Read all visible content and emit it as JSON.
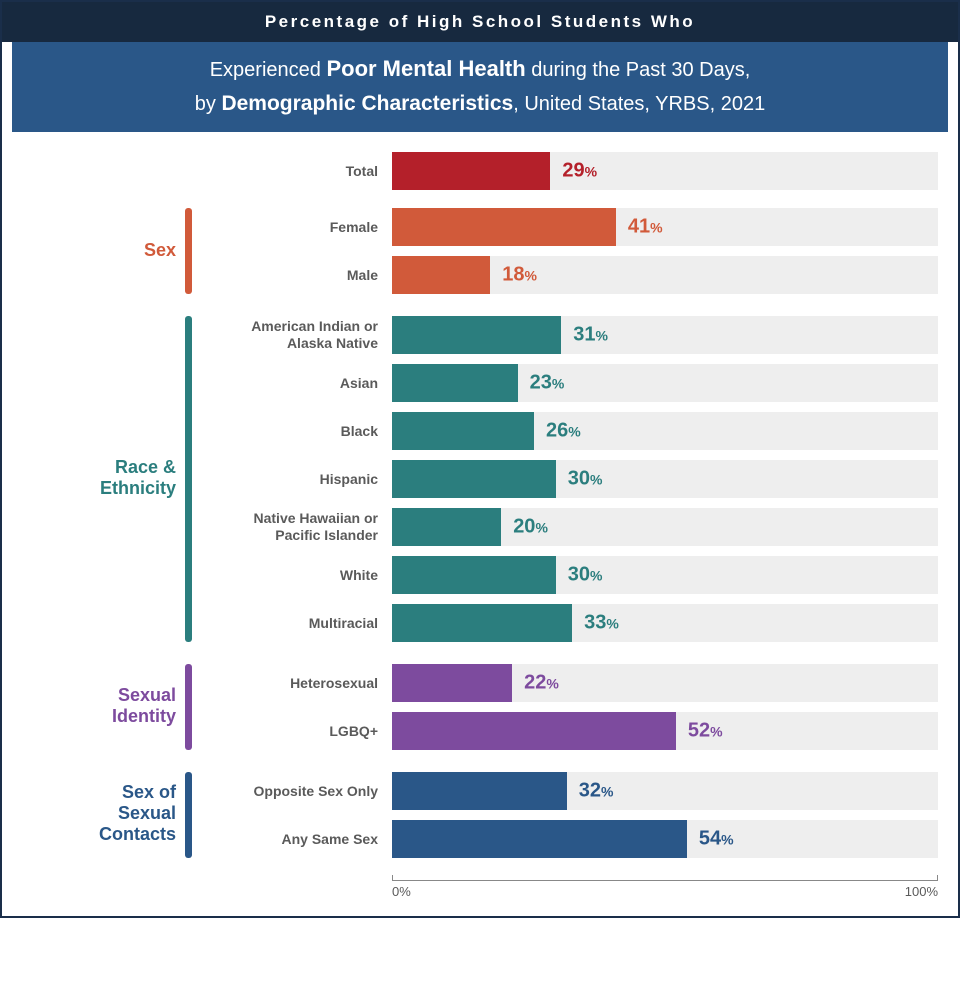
{
  "header": {
    "top": "Percentage of High School Students Who",
    "sub_prefix": "Experienced",
    "sub_bold1": "Poor Mental Health",
    "sub_mid": "during the Past 30 Days,",
    "sub_by": "by",
    "sub_bold2": "Demographic Characteristics",
    "sub_tail": ", United States, YRBS, 2021"
  },
  "colors": {
    "top_banner_bg": "#17293f",
    "sub_banner_bg": "#2a5788",
    "track_bg": "#eeeeee",
    "border": "#1a2e4a",
    "text_gray": "#5a5a5a"
  },
  "axis": {
    "min_label": "0%",
    "max_label": "100%",
    "xlim": [
      0,
      100
    ]
  },
  "total": {
    "label": "Total",
    "value": 29,
    "bar_color": "#b4202a",
    "text_color": "#b4202a"
  },
  "groups": [
    {
      "name": "Sex",
      "label_color": "#d15a3a",
      "bar_color": "#d15a3a",
      "text_color": "#d15a3a",
      "items": [
        {
          "label": "Female",
          "value": 41
        },
        {
          "label": "Male",
          "value": 18
        }
      ]
    },
    {
      "name": "Race &\nEthnicity",
      "label_color": "#2b7e7e",
      "bar_color": "#2b7e7e",
      "text_color": "#2b7e7e",
      "items": [
        {
          "label": "American Indian or\nAlaska Native",
          "value": 31
        },
        {
          "label": "Asian",
          "value": 23
        },
        {
          "label": "Black",
          "value": 26
        },
        {
          "label": "Hispanic",
          "value": 30
        },
        {
          "label": "Native Hawaiian or\nPacific Islander",
          "value": 20
        },
        {
          "label": "White",
          "value": 30
        },
        {
          "label": "Multiracial",
          "value": 33
        }
      ]
    },
    {
      "name": "Sexual\nIdentity",
      "label_color": "#7d4b9e",
      "bar_color": "#7d4b9e",
      "text_color": "#7d4b9e",
      "items": [
        {
          "label": "Heterosexual",
          "value": 22
        },
        {
          "label": "LGBQ+",
          "value": 52
        }
      ]
    },
    {
      "name": "Sex of\nSexual\nContacts",
      "label_color": "#2a5788",
      "bar_color": "#2a5788",
      "text_color": "#2a5788",
      "items": [
        {
          "label": "Opposite Sex Only",
          "value": 32
        },
        {
          "label": "Any Same Sex",
          "value": 54
        }
      ]
    }
  ]
}
